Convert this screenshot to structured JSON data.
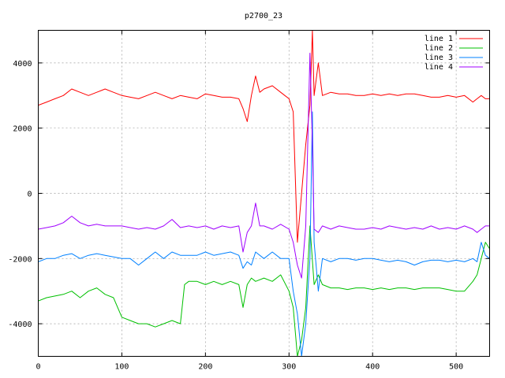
{
  "chart_data": {
    "type": "line",
    "title": "p2700_23",
    "xlabel": "",
    "ylabel": "",
    "xlim": [
      0,
      540
    ],
    "ylim": [
      -5000,
      5000
    ],
    "x_ticks": [
      0,
      100,
      200,
      300,
      400,
      500
    ],
    "y_ticks": [
      -4000,
      -2000,
      0,
      2000,
      4000
    ],
    "grid": true,
    "legend_position": "top-right",
    "series": [
      {
        "name": "line 1",
        "color": "#ff0000",
        "x": [
          0,
          10,
          20,
          30,
          40,
          50,
          60,
          70,
          80,
          90,
          100,
          110,
          120,
          130,
          140,
          150,
          160,
          170,
          180,
          190,
          200,
          210,
          220,
          230,
          240,
          245,
          250,
          255,
          260,
          265,
          270,
          280,
          290,
          295,
          300,
          305,
          310,
          315,
          320,
          325,
          328,
          330,
          335,
          340,
          350,
          360,
          370,
          380,
          390,
          400,
          410,
          420,
          430,
          440,
          450,
          460,
          470,
          480,
          490,
          500,
          510,
          520,
          525,
          530,
          535,
          540
        ],
        "values": [
          2700,
          2800,
          2900,
          3000,
          3200,
          3100,
          3000,
          3100,
          3200,
          3100,
          3000,
          2950,
          2900,
          3000,
          3100,
          3000,
          2900,
          3000,
          2950,
          2900,
          3050,
          3000,
          2950,
          2950,
          2900,
          2600,
          2200,
          3000,
          3600,
          3100,
          3200,
          3300,
          3100,
          3000,
          2900,
          2500,
          -1500,
          0,
          1500,
          2700,
          5000,
          3000,
          4000,
          3000,
          3100,
          3050,
          3050,
          3000,
          3000,
          3050,
          3000,
          3050,
          3000,
          3050,
          3050,
          3000,
          2950,
          2950,
          3000,
          2950,
          3000,
          2800,
          2900,
          3000,
          2900,
          2900
        ]
      },
      {
        "name": "line 2",
        "color": "#00c000",
        "x": [
          0,
          10,
          20,
          30,
          40,
          50,
          60,
          70,
          80,
          90,
          100,
          110,
          120,
          130,
          140,
          150,
          160,
          170,
          175,
          180,
          190,
          200,
          210,
          220,
          230,
          240,
          245,
          250,
          255,
          260,
          270,
          280,
          290,
          300,
          305,
          310,
          315,
          320,
          325,
          330,
          335,
          340,
          350,
          360,
          370,
          380,
          390,
          400,
          410,
          420,
          430,
          440,
          450,
          460,
          470,
          480,
          490,
          500,
          510,
          520,
          525,
          530,
          535,
          540
        ],
        "values": [
          -3300,
          -3200,
          -3150,
          -3100,
          -3000,
          -3200,
          -3000,
          -2900,
          -3100,
          -3200,
          -3800,
          -3900,
          -4000,
          -4000,
          -4100,
          -4000,
          -3900,
          -4000,
          -2800,
          -2700,
          -2700,
          -2800,
          -2700,
          -2800,
          -2700,
          -2800,
          -3500,
          -2800,
          -2600,
          -2700,
          -2600,
          -2700,
          -2500,
          -3000,
          -3500,
          -5000,
          -4500,
          -3500,
          -1000,
          -2800,
          -2500,
          -2800,
          -2900,
          -2900,
          -2950,
          -2900,
          -2900,
          -2950,
          -2900,
          -2950,
          -2900,
          -2900,
          -2950,
          -2900,
          -2900,
          -2900,
          -2950,
          -3000,
          -3000,
          -2700,
          -2500,
          -2000,
          -1500,
          -1700
        ]
      },
      {
        "name": "line 3",
        "color": "#0080ff",
        "x": [
          0,
          10,
          20,
          30,
          40,
          50,
          60,
          70,
          80,
          90,
          100,
          110,
          120,
          130,
          140,
          150,
          160,
          170,
          180,
          190,
          200,
          210,
          220,
          230,
          240,
          245,
          250,
          255,
          260,
          270,
          280,
          290,
          300,
          305,
          310,
          315,
          320,
          325,
          328,
          330,
          335,
          340,
          350,
          360,
          370,
          380,
          390,
          400,
          410,
          420,
          430,
          440,
          450,
          460,
          470,
          480,
          490,
          500,
          510,
          520,
          525,
          530,
          535,
          540
        ],
        "values": [
          -2100,
          -2000,
          -2000,
          -1900,
          -1850,
          -2000,
          -1900,
          -1850,
          -1900,
          -1950,
          -2000,
          -2000,
          -2200,
          -2000,
          -1800,
          -2000,
          -1800,
          -1900,
          -1900,
          -1900,
          -1800,
          -1900,
          -1850,
          -1800,
          -1900,
          -2300,
          -2100,
          -2200,
          -1800,
          -2000,
          -1800,
          -2000,
          -2000,
          -3000,
          -3700,
          -5000,
          -4000,
          -2000,
          2500,
          -1500,
          -3000,
          -2000,
          -2100,
          -2000,
          -2000,
          -2050,
          -2000,
          -2000,
          -2050,
          -2100,
          -2050,
          -2100,
          -2200,
          -2100,
          -2050,
          -2050,
          -2100,
          -2050,
          -2100,
          -2000,
          -2100,
          -1500,
          -1900,
          -2000
        ]
      },
      {
        "name": "line 4",
        "color": "#a000ff",
        "x": [
          0,
          10,
          20,
          30,
          40,
          50,
          60,
          70,
          80,
          90,
          100,
          110,
          120,
          130,
          140,
          150,
          160,
          170,
          180,
          190,
          200,
          210,
          220,
          230,
          240,
          245,
          250,
          255,
          260,
          265,
          270,
          280,
          290,
          300,
          305,
          310,
          315,
          320,
          325,
          328,
          330,
          335,
          340,
          350,
          360,
          370,
          380,
          390,
          400,
          410,
          420,
          430,
          440,
          450,
          460,
          470,
          480,
          490,
          500,
          510,
          520,
          525,
          530,
          535,
          540
        ],
        "values": [
          -1100,
          -1050,
          -1000,
          -900,
          -700,
          -900,
          -1000,
          -950,
          -1000,
          -1000,
          -1000,
          -1050,
          -1100,
          -1050,
          -1100,
          -1000,
          -800,
          -1050,
          -1000,
          -1050,
          -1000,
          -1100,
          -1000,
          -1050,
          -1000,
          -1800,
          -1200,
          -1000,
          -300,
          -1000,
          -1000,
          -1100,
          -950,
          -1100,
          -1500,
          -2200,
          -2600,
          -1000,
          4300,
          1500,
          -1100,
          -1200,
          -1000,
          -1100,
          -1000,
          -1050,
          -1100,
          -1100,
          -1050,
          -1100,
          -1000,
          -1050,
          -1100,
          -1050,
          -1100,
          -1000,
          -1100,
          -1050,
          -1100,
          -1000,
          -1100,
          -1200,
          -1100,
          -1000,
          -1000
        ]
      }
    ]
  }
}
